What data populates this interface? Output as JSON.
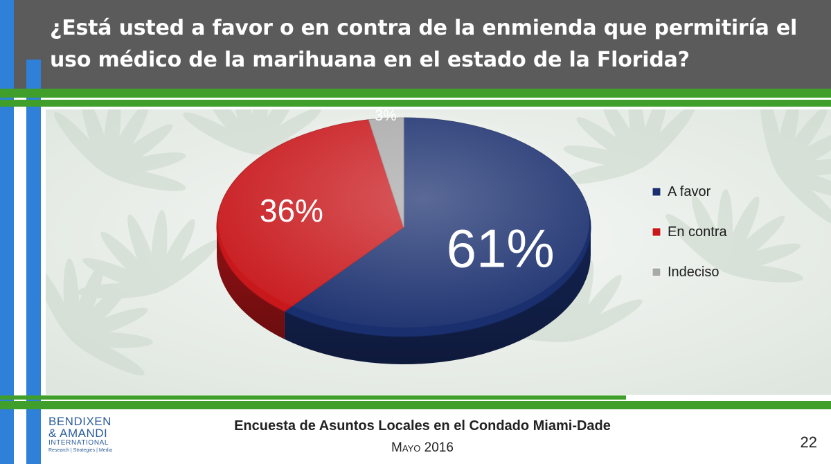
{
  "slide": {
    "title": "¿Está usted a favor o en contra de la enmienda que permitiría el uso médico de la marihuana en el estado de la Florida?",
    "footer_title": "Encuesta de Asuntos Locales en el Condado Miami-Dade",
    "footer_month": "Mayo",
    "footer_year": "2016",
    "page_number": "22"
  },
  "logo": {
    "line1": "BENDIXEN",
    "line2": "& AMANDI",
    "line3": "INTERNATIONAL",
    "tagline": "Research | Strategies | Media"
  },
  "colors": {
    "header_bg": "#5b5b5b",
    "accent_blue": "#2f80d8",
    "accent_green": "#3f9f2a"
  },
  "chart_data": {
    "type": "pie",
    "title": "",
    "legend_position": "right",
    "slices": [
      {
        "label": "A favor",
        "value": 61,
        "display": "61%",
        "color": "#1a2f6e"
      },
      {
        "label": "En contra",
        "value": 36,
        "display": "36%",
        "color": "#c8181c"
      },
      {
        "label": "Indeciso",
        "value": 3,
        "display": "3%",
        "color": "#a9a9a9"
      }
    ]
  }
}
